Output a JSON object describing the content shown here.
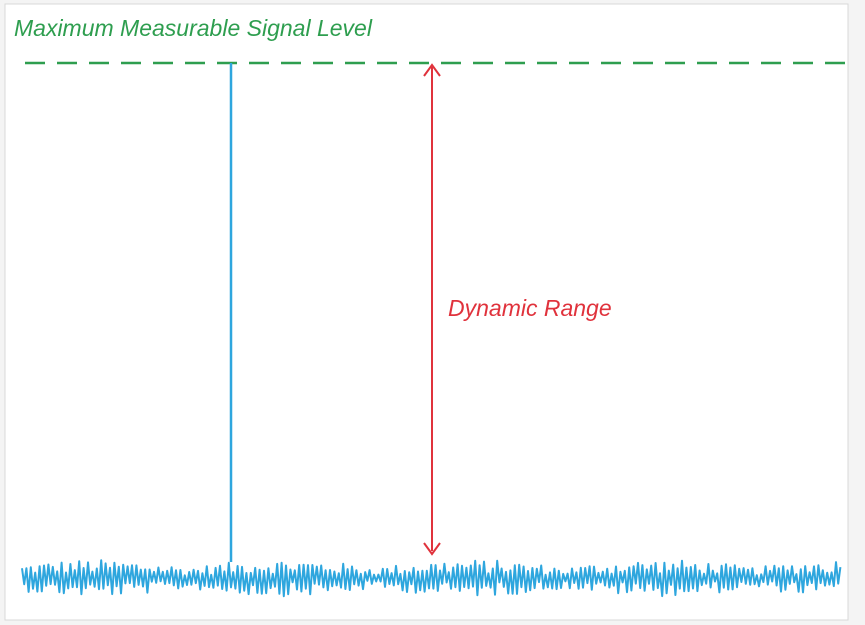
{
  "labels": {
    "max_level": "Maximum Measurable Signal Level",
    "dynamic_range": "Dynamic Range"
  }
}
